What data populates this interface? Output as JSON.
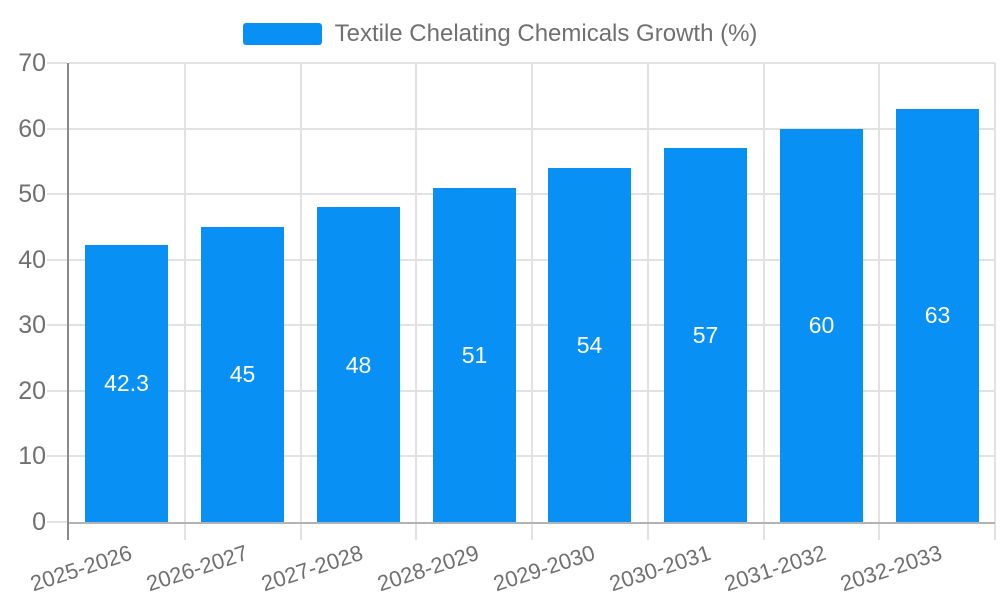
{
  "legend": {
    "label": "Textile Chelating Chemicals Growth (%)"
  },
  "colors": {
    "bar": "#0990f5",
    "bar_label": "#ffffff",
    "text": "#707070",
    "grid": "#e2e2e2",
    "axis_line": "#8a8a8a",
    "baseline": "#b3b3b3",
    "background": "#ffffff"
  },
  "chart_data": {
    "type": "bar",
    "title": "Textile Chelating Chemicals Growth (%)",
    "categories": [
      "2025-2026",
      "2026-2027",
      "2027-2028",
      "2028-2029",
      "2029-2030",
      "2030-2031",
      "2031-2032",
      "2032-2033"
    ],
    "values": [
      42.3,
      45,
      48,
      51,
      54,
      57,
      60,
      63
    ],
    "bar_labels": [
      "42.3",
      "45",
      "48",
      "51",
      "54",
      "57",
      "60",
      "63"
    ],
    "xlabel": "",
    "ylabel": "",
    "ylim": [
      0,
      70
    ],
    "yticks": [
      0,
      10,
      20,
      30,
      40,
      50,
      60,
      70
    ],
    "grid": true,
    "legend_position": "top-center",
    "x_tick_rotation_deg": -18,
    "bar_label_position": "center"
  }
}
